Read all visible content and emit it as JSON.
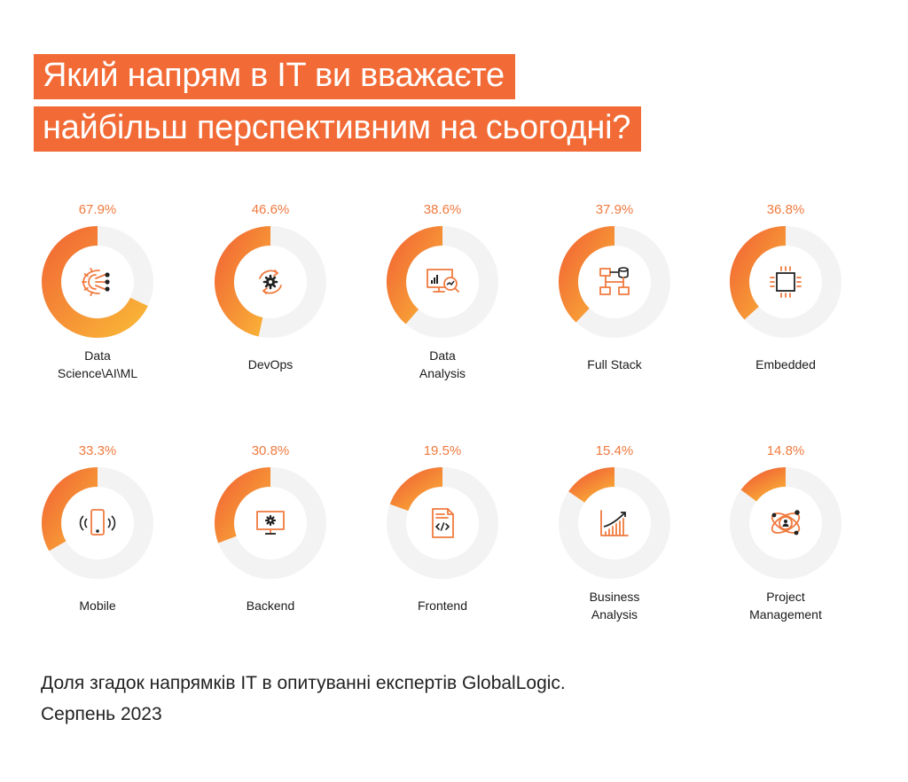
{
  "title": {
    "line1": "Який напрям в IT ви вважаєте",
    "line2": "найбільш перспективним на сьогодні?"
  },
  "footnote": {
    "line1": "Доля згадок напрямків IT в опитуванні експертів GlobalLogic.",
    "line2": "Серпень 2023"
  },
  "colors": {
    "title_bg": "#f26a35",
    "percent_text": "#f07a3f",
    "ring_track": "#f3f3f3",
    "ring_start": "#f26a35",
    "ring_end": "#f9b536",
    "icon_orange": "#f07a3f",
    "icon_dark": "#222222"
  },
  "chart_data": {
    "type": "donut-grid",
    "unit": "%",
    "items": [
      {
        "category": [
          "Data",
          "Science\\AI\\ML"
        ],
        "value": 67.9,
        "label": "67.9%",
        "icon": "ai-gear-icon"
      },
      {
        "category": [
          "DevOps"
        ],
        "value": 46.6,
        "label": "46.6%",
        "icon": "devops-cycle-icon"
      },
      {
        "category": [
          "Data",
          "Analysis"
        ],
        "value": 38.6,
        "label": "38.6%",
        "icon": "data-analysis-icon"
      },
      {
        "category": [
          "Full Stack"
        ],
        "value": 37.9,
        "label": "37.9%",
        "icon": "full-stack-icon"
      },
      {
        "category": [
          "Embedded"
        ],
        "value": 36.8,
        "label": "36.8%",
        "icon": "chip-icon"
      },
      {
        "category": [
          "Mobile"
        ],
        "value": 33.3,
        "label": "33.3%",
        "icon": "mobile-phone-icon"
      },
      {
        "category": [
          "Backend"
        ],
        "value": 30.8,
        "label": "30.8%",
        "icon": "server-monitor-icon"
      },
      {
        "category": [
          "Frontend"
        ],
        "value": 19.5,
        "label": "19.5%",
        "icon": "code-document-icon"
      },
      {
        "category": [
          "Business",
          "Analysis"
        ],
        "value": 15.4,
        "label": "15.4%",
        "icon": "growth-chart-icon"
      },
      {
        "category": [
          "Project",
          "Management"
        ],
        "value": 14.8,
        "label": "14.8%",
        "icon": "project-orbit-icon"
      }
    ]
  }
}
